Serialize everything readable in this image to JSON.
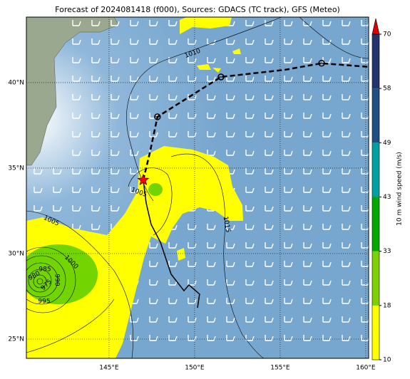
{
  "chart_data": {
    "type": "map",
    "title": "Forecast of 2024081418 (f000), Sources: GDACS (TC track), GFS (Meteo)",
    "xlim": [
      140.17,
      160.17
    ],
    "ylim": [
      23.875,
      43.83
    ],
    "xticks": [
      {
        "value": 145,
        "label": "145°E"
      },
      {
        "value": 150,
        "label": "150°E"
      },
      {
        "value": 155,
        "label": "155°E"
      },
      {
        "value": 160,
        "label": "160°E"
      }
    ],
    "yticks": [
      {
        "value": 25,
        "label": "25°N"
      },
      {
        "value": 30,
        "label": "30°N"
      },
      {
        "value": 35,
        "label": "35°N"
      },
      {
        "value": 40,
        "label": "40°N"
      }
    ],
    "grid": true,
    "tracks": [
      {
        "style": "solid",
        "color": "#000000",
        "x": [
          147.0,
          147.17,
          147.46,
          148.0,
          148.63,
          149.38,
          149.67,
          150.29,
          150.17
        ],
        "y": [
          34.3,
          32.96,
          31.71,
          30.67,
          28.79,
          27.83,
          28.17,
          27.63,
          26.83
        ]
      },
      {
        "style": "dashed",
        "color": "#000000",
        "x": [
          147.0,
          147.38,
          147.83,
          151.54,
          155.29,
          157.42,
          160.17
        ],
        "y": [
          34.3,
          35.88,
          38.0,
          40.33,
          40.75,
          41.13,
          40.92
        ]
      }
    ],
    "forecast_points": {
      "x": [
        147.83,
        151.54,
        157.42
      ],
      "y": [
        38.0,
        40.33,
        41.13
      ]
    },
    "current_position": {
      "x": 147.0,
      "y": 34.3,
      "color": "#ff0000"
    },
    "isobar_labels": [
      "1010",
      "1005",
      "1005",
      "1000",
      "1015",
      "995",
      "990",
      "985",
      "980",
      "975"
    ],
    "colorbar": {
      "label": "10 m wind speed (m/s)",
      "ticks": [
        10,
        18,
        33,
        43,
        49,
        58,
        70
      ],
      "colors": [
        "#ffff00",
        "#7fd000",
        "#00a800",
        "#00a0a0",
        "#1f4f80",
        "#24336e"
      ],
      "extend_color": "#e00000"
    }
  }
}
